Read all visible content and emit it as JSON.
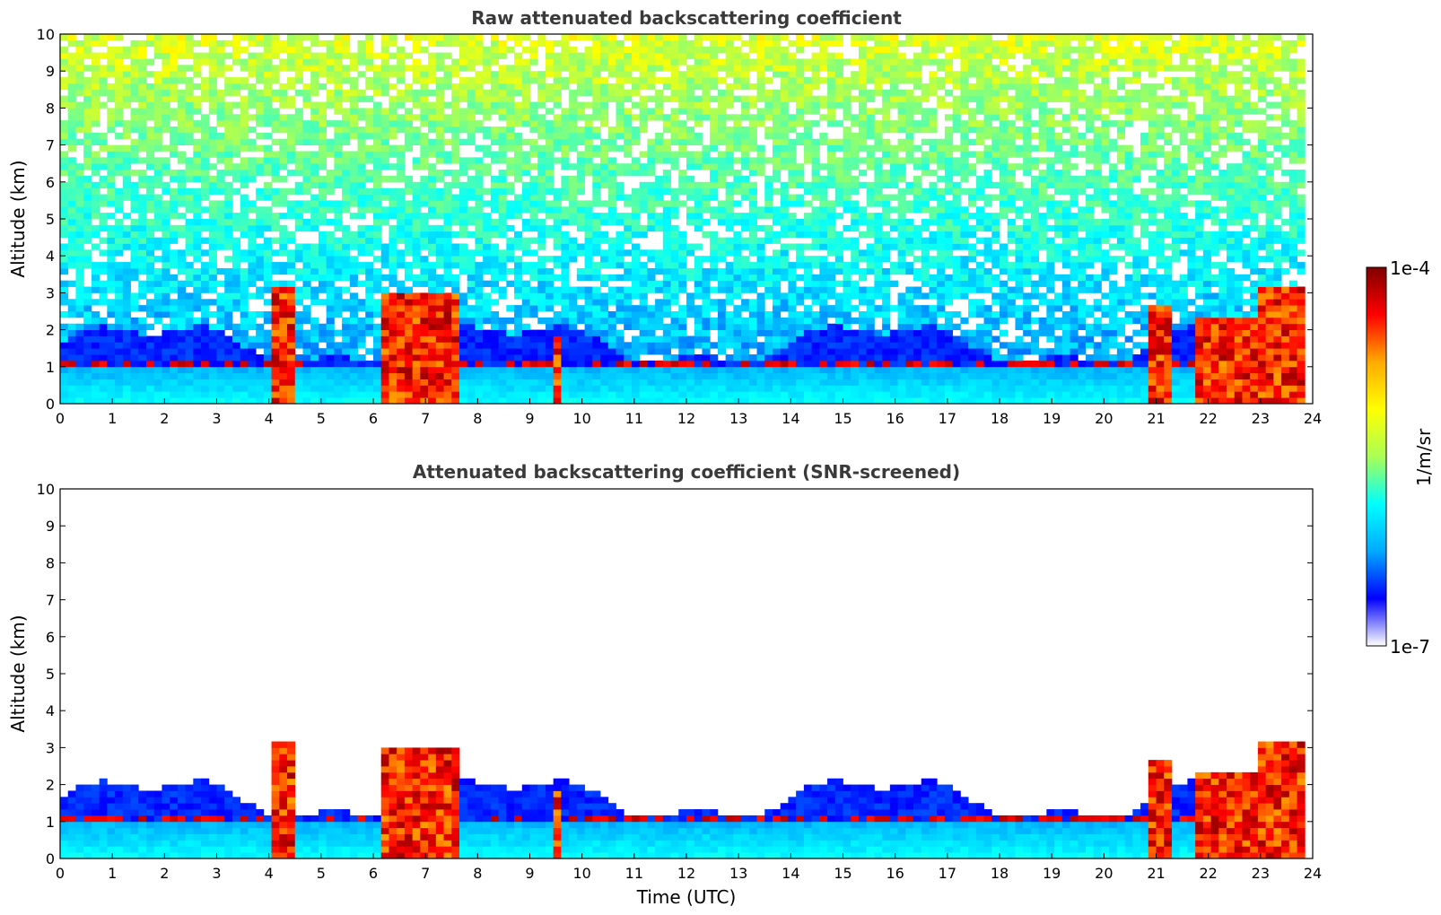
{
  "chart_data": [
    {
      "type": "heatmap",
      "title": "Raw attenuated backscattering coefficient",
      "xlabel": "",
      "ylabel": "Altitude (km)",
      "xlim": [
        0,
        24
      ],
      "ylim": [
        0,
        10
      ],
      "xticks": [
        "0",
        "1",
        "2",
        "3",
        "4",
        "5",
        "6",
        "7",
        "8",
        "9",
        "10",
        "11",
        "12",
        "13",
        "14",
        "15",
        "16",
        "17",
        "18",
        "19",
        "20",
        "21",
        "22",
        "23",
        "24"
      ],
      "yticks": [
        "0",
        "1",
        "2",
        "3",
        "4",
        "5",
        "6",
        "7",
        "8",
        "9",
        "10"
      ],
      "grid": false,
      "screened": false,
      "features": {
        "boundary_layer_top_km": 1.0,
        "cloud_events_utc": [
          {
            "start": 4.0,
            "end": 4.5,
            "top_km": 3.2
          },
          {
            "start": 6.1,
            "end": 7.6,
            "top_km": 3.0
          },
          {
            "start": 9.4,
            "end": 9.6,
            "top_km": 1.8
          },
          {
            "start": 20.8,
            "end": 21.3,
            "top_km": 2.7
          },
          {
            "start": 21.7,
            "end": 23.0,
            "top_km": 2.4
          },
          {
            "start": 23.0,
            "end": 23.8,
            "top_km": 3.1
          }
        ]
      }
    },
    {
      "type": "heatmap",
      "title": "Attenuated backscattering coefficient (SNR-screened)",
      "xlabel": "Time (UTC)",
      "ylabel": "Altitude (km)",
      "xlim": [
        0,
        24
      ],
      "ylim": [
        0,
        10
      ],
      "xticks": [
        "0",
        "1",
        "2",
        "3",
        "4",
        "5",
        "6",
        "7",
        "8",
        "9",
        "10",
        "11",
        "12",
        "13",
        "14",
        "15",
        "16",
        "17",
        "18",
        "19",
        "20",
        "21",
        "22",
        "23",
        "24"
      ],
      "yticks": [
        "0",
        "1",
        "2",
        "3",
        "4",
        "5",
        "6",
        "7",
        "8",
        "9",
        "10"
      ],
      "grid": false,
      "screened": true
    }
  ],
  "colorbar": {
    "label": "1/m/sr",
    "max_label": "1e-4",
    "min_label": "1e-7",
    "scale": "log",
    "range": [
      1e-07,
      0.0001
    ],
    "colormap": "jet",
    "colors": [
      "#ffffff",
      "#0000ff",
      "#00aaff",
      "#00ffff",
      "#aaff55",
      "#ffff00",
      "#ffaa00",
      "#ff0000",
      "#800000"
    ]
  }
}
